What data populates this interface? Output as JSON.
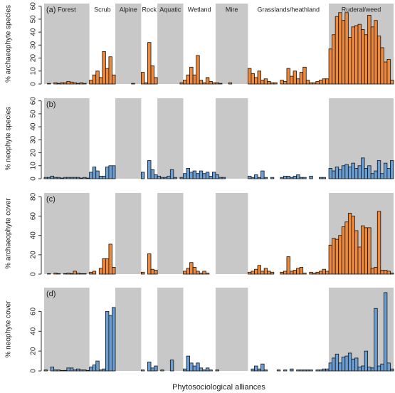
{
  "chart_data": [
    {
      "type": "bar",
      "panel_label": "(a)",
      "ylabel": "% archaeophyte species",
      "color": "#f0893a",
      "category_groups": [
        {
          "label": "Forest",
          "size": 14,
          "shaded": true
        },
        {
          "label": "Scrub",
          "size": 8,
          "shaded": false
        },
        {
          "label": "Alpine",
          "size": 8,
          "shaded": true
        },
        {
          "label": "Rock",
          "size": 5,
          "shaded": false
        },
        {
          "label": "Aquatic",
          "size": 8,
          "shaded": true
        },
        {
          "label": "Wetland",
          "size": 10,
          "shaded": false
        },
        {
          "label": "Mire",
          "size": 10,
          "shaded": true
        },
        {
          "label": "Grasslands/heathland",
          "size": 25,
          "shaded": false
        },
        {
          "label": "Ruderal/weed",
          "size": 20,
          "shaded": true
        }
      ],
      "categories": [
        null,
        null,
        null,
        null,
        null,
        null,
        null,
        null,
        null,
        null,
        null,
        null,
        null,
        null,
        null,
        null,
        null,
        null,
        null,
        null,
        null,
        null,
        null,
        null,
        null,
        null,
        null,
        null,
        null,
        null,
        null,
        null,
        null,
        null,
        null,
        null,
        null,
        null,
        null,
        null,
        null,
        null,
        null,
        null,
        null,
        null,
        null,
        null,
        null,
        null,
        null,
        null,
        null,
        null,
        null,
        null,
        null,
        null,
        null,
        null,
        null,
        null,
        null,
        null,
        null,
        null,
        null,
        null,
        null,
        null,
        null,
        null,
        null,
        null,
        null,
        null,
        null,
        null,
        null,
        null,
        null,
        null,
        null,
        null,
        null,
        null,
        null,
        null,
        null,
        null,
        null,
        null,
        null,
        null,
        null,
        null,
        null,
        null,
        null,
        null,
        null,
        null,
        null,
        null,
        null,
        null,
        null,
        null
      ],
      "values": [
        0,
        0.5,
        0,
        1,
        0.5,
        1,
        1,
        2,
        1.5,
        1,
        0.5,
        1,
        0.5,
        0,
        3,
        7,
        10,
        5,
        25,
        12,
        21,
        7,
        0,
        0,
        0,
        0,
        0,
        0.5,
        0,
        0,
        9,
        1,
        32,
        14,
        5,
        0,
        0,
        0,
        0,
        0,
        0,
        0,
        1,
        3,
        7,
        13,
        7,
        22,
        3,
        1,
        5,
        2,
        1,
        1,
        0.5,
        0,
        0,
        1,
        0,
        0,
        0,
        0,
        0,
        12,
        8,
        5,
        10,
        3,
        4,
        2,
        1,
        1,
        0,
        3,
        2,
        12,
        6,
        10,
        4,
        9,
        13,
        3,
        1,
        1,
        2,
        3,
        4,
        4,
        27,
        38,
        52,
        55,
        49,
        55,
        36,
        44,
        45,
        46,
        42,
        38,
        53,
        44,
        49,
        37,
        28,
        17,
        19,
        3
      ],
      "ylim": [
        0,
        62
      ],
      "yticks": [
        0,
        10,
        20,
        30,
        40,
        50,
        60
      ]
    },
    {
      "type": "bar",
      "panel_label": "(b)",
      "ylabel": "% neophyte species",
      "color": "#6a9fd6",
      "categories": [
        null,
        null,
        null,
        null,
        null,
        null,
        null,
        null,
        null,
        null,
        null,
        null,
        null,
        null,
        null,
        null,
        null,
        null,
        null,
        null,
        null,
        null,
        null,
        null,
        null,
        null,
        null,
        null,
        null,
        null,
        null,
        null,
        null,
        null,
        null,
        null,
        null,
        null,
        null,
        null,
        null,
        null,
        null,
        null,
        null,
        null,
        null,
        null,
        null,
        null,
        null,
        null,
        null,
        null,
        null,
        null,
        null,
        null,
        null,
        null,
        null,
        null,
        null,
        null,
        null,
        null,
        null,
        null,
        null,
        null,
        null,
        null,
        null,
        null,
        null,
        null,
        null,
        null,
        null,
        null,
        null,
        null,
        null,
        null,
        null,
        null,
        null,
        null,
        null,
        null,
        null,
        null,
        null,
        null,
        null,
        null,
        null,
        null,
        null,
        null,
        null,
        null,
        null,
        null,
        null,
        null,
        null,
        null
      ],
      "values": [
        1,
        1,
        2,
        1,
        1,
        0.5,
        1,
        1,
        1,
        1,
        1,
        0.5,
        1,
        0.5,
        5,
        9,
        6,
        2,
        2,
        9,
        10,
        10,
        0,
        0,
        0,
        0,
        0,
        0,
        0,
        0,
        5,
        0,
        14,
        7,
        3,
        2,
        1,
        1,
        2,
        7,
        1,
        0,
        1,
        4,
        8,
        5,
        6,
        4,
        6,
        4,
        5,
        2,
        5,
        3,
        1,
        1,
        0,
        0,
        0,
        0,
        0,
        0,
        0,
        2,
        1,
        3,
        1,
        6,
        1,
        0,
        1,
        0,
        0,
        1,
        2,
        2,
        1,
        2,
        3,
        1,
        1,
        0,
        2,
        0,
        0,
        1,
        1,
        0,
        8,
        6,
        9,
        7,
        10,
        11,
        9,
        12,
        8,
        10,
        16,
        8,
        10,
        4,
        6,
        14,
        4,
        12,
        8,
        14
      ],
      "ylim": [
        0,
        62
      ],
      "yticks": [
        0,
        10,
        20,
        30,
        40,
        50,
        60
      ]
    },
    {
      "type": "bar",
      "panel_label": "(c)",
      "ylabel": "% archaeophyte cover",
      "color": "#f0893a",
      "categories": [
        null,
        null,
        null,
        null,
        null,
        null,
        null,
        null,
        null,
        null,
        null,
        null,
        null,
        null,
        null,
        null,
        null,
        null,
        null,
        null,
        null,
        null,
        null,
        null,
        null,
        null,
        null,
        null,
        null,
        null,
        null,
        null,
        null,
        null,
        null,
        null,
        null,
        null,
        null,
        null,
        null,
        null,
        null,
        null,
        null,
        null,
        null,
        null,
        null,
        null,
        null,
        null,
        null,
        null,
        null,
        null,
        null,
        null,
        null,
        null,
        null,
        null,
        null,
        null,
        null,
        null,
        null,
        null,
        null,
        null,
        null,
        null,
        null,
        null,
        null,
        null,
        null,
        null,
        null,
        null,
        null,
        null,
        null,
        null,
        null,
        null,
        null,
        null,
        null,
        null,
        null,
        null,
        null,
        null,
        null,
        null,
        null,
        null,
        null,
        null,
        null,
        null,
        null,
        null,
        null,
        null,
        null,
        null
      ],
      "values": [
        0,
        0.5,
        0,
        1,
        0.5,
        0,
        0.5,
        1,
        0.5,
        3,
        1,
        0.5,
        0.5,
        0,
        2,
        3,
        0,
        6,
        16,
        16,
        31,
        7,
        0,
        0,
        0,
        0,
        0,
        0,
        0,
        0,
        2,
        0,
        21,
        5,
        4,
        0,
        0,
        0,
        0,
        0,
        0,
        0,
        0,
        3,
        6,
        12,
        7,
        3,
        1,
        3,
        1,
        0,
        0,
        0,
        0,
        0,
        0,
        0,
        0,
        0,
        0,
        0,
        0,
        2,
        3,
        5,
        9,
        3,
        6,
        3,
        2,
        0,
        0,
        2,
        3,
        18,
        3,
        4,
        6,
        7,
        1,
        0,
        2,
        1,
        2,
        3,
        5,
        3,
        30,
        37,
        36,
        40,
        49,
        54,
        63,
        60,
        45,
        28,
        50,
        48,
        48,
        6,
        7,
        65,
        4,
        4,
        3,
        1
      ],
      "ylim": [
        0,
        84
      ],
      "yticks": [
        0,
        20,
        40,
        60,
        80
      ]
    },
    {
      "type": "bar",
      "panel_label": "(d)",
      "ylabel": "% neophyte cover",
      "color": "#6a9fd6",
      "xlabel": "Phytosociological alliances",
      "categories": [
        null,
        null,
        null,
        null,
        null,
        null,
        null,
        null,
        null,
        null,
        null,
        null,
        null,
        null,
        null,
        null,
        null,
        null,
        null,
        null,
        null,
        null,
        null,
        null,
        null,
        null,
        null,
        null,
        null,
        null,
        null,
        null,
        null,
        null,
        null,
        null,
        null,
        null,
        null,
        null,
        null,
        null,
        null,
        null,
        null,
        null,
        null,
        null,
        null,
        null,
        null,
        null,
        null,
        null,
        null,
        null,
        null,
        null,
        null,
        null,
        null,
        null,
        null,
        null,
        null,
        null,
        null,
        null,
        null,
        null,
        null,
        null,
        null,
        null,
        null,
        null,
        null,
        null,
        null,
        null,
        null,
        null,
        null,
        null,
        null,
        null,
        null,
        null,
        null,
        null,
        null,
        null,
        null,
        null,
        null,
        null,
        null,
        null,
        null,
        null,
        null,
        null,
        null,
        null,
        null,
        null,
        null,
        null
      ],
      "values": [
        1,
        0,
        4,
        1,
        1,
        0.5,
        0.5,
        3,
        3,
        1,
        2,
        1,
        1,
        0.5,
        4,
        6,
        10,
        1,
        2,
        60,
        56,
        64,
        0,
        0,
        0,
        0,
        0,
        0,
        0,
        0,
        1,
        0,
        9,
        3,
        5,
        0,
        1,
        0,
        0,
        11,
        0,
        0,
        0,
        2,
        15,
        8,
        5,
        8,
        3,
        1,
        3,
        1,
        0,
        1,
        0,
        0,
        0,
        0,
        0,
        0,
        0,
        0,
        0,
        0,
        2,
        5,
        2,
        7,
        1,
        0,
        0,
        0,
        1,
        0,
        1,
        0,
        2,
        0,
        1,
        1,
        1,
        1,
        1,
        0,
        1,
        1,
        2,
        2,
        8,
        13,
        17,
        8,
        14,
        15,
        18,
        12,
        13,
        4,
        5,
        20,
        4,
        3,
        63,
        5,
        7,
        79,
        8,
        2
      ],
      "ylim": [
        0,
        84
      ],
      "yticks": [
        0,
        20,
        40,
        60
      ]
    }
  ]
}
